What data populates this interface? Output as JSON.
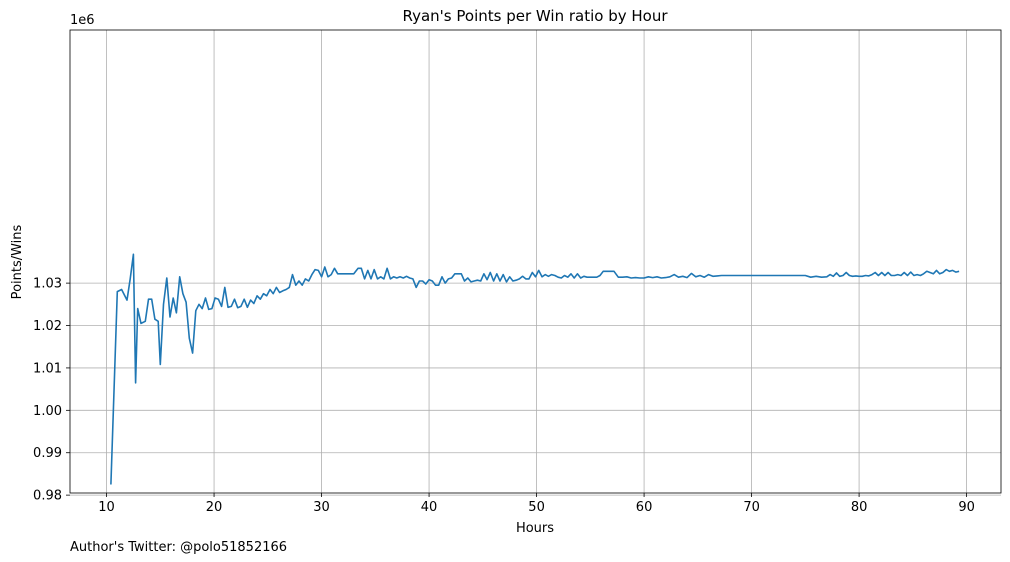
{
  "chart_data": {
    "type": "line",
    "title": "Ryan's Points per Win ratio by Hour",
    "xlabel": "Hours",
    "ylabel": "Points/Wins",
    "y_offset_label": "1e6",
    "footer": "Author's Twitter: @polo51852166",
    "xlim": [
      6.6,
      93.2
    ],
    "ylim": [
      0.9805,
      1.0897
    ],
    "x_ticks": [
      10,
      20,
      30,
      40,
      50,
      60,
      70,
      80,
      90
    ],
    "x_tick_labels": [
      "10",
      "20",
      "30",
      "40",
      "50",
      "60",
      "70",
      "80",
      "90"
    ],
    "y_ticks": [
      0.98,
      0.99,
      1.0,
      1.01,
      1.02,
      1.03
    ],
    "y_tick_labels": [
      "0.98",
      "0.99",
      "1.00",
      "1.01",
      "1.02",
      "1.03"
    ],
    "grid": true,
    "line_color": "#1f77b4",
    "series": [
      {
        "x": [
          10.4,
          11.0,
          11.4,
          11.9,
          12.2,
          12.5,
          12.7,
          12.9,
          13.2,
          13.6,
          13.9,
          14.2,
          14.5,
          14.8,
          15.0,
          15.3,
          15.6,
          15.9,
          16.2,
          16.5,
          16.8,
          17.1,
          17.4,
          17.7,
          18.0,
          18.3,
          18.6,
          18.9,
          19.2,
          19.5,
          19.8,
          20.1,
          20.4,
          20.7,
          21.0,
          21.3,
          21.6,
          21.9,
          22.2,
          22.5,
          22.8,
          23.1,
          23.4,
          23.7,
          24.0,
          24.3,
          24.6,
          24.9,
          25.2,
          25.5,
          25.8,
          26.1,
          26.4,
          26.7,
          27.0,
          27.3,
          27.6,
          27.9,
          28.2,
          28.5,
          28.8,
          29.1,
          29.4,
          29.7,
          30.0,
          30.3,
          30.6,
          30.9,
          31.2,
          31.5,
          31.8,
          32.1,
          32.5,
          33.0,
          33.4,
          33.7,
          34.0,
          34.3,
          34.6,
          34.9,
          35.2,
          35.5,
          35.8,
          36.1,
          36.4,
          36.7,
          37.0,
          37.3,
          37.6,
          37.9,
          38.2,
          38.5,
          38.8,
          39.1,
          39.4,
          39.7,
          40.0,
          40.3,
          40.6,
          40.9,
          41.2,
          41.5,
          41.8,
          42.1,
          42.4,
          42.7,
          43.0,
          43.3,
          43.6,
          43.9,
          44.2,
          44.5,
          44.8,
          45.1,
          45.4,
          45.7,
          46.0,
          46.3,
          46.6,
          46.9,
          47.2,
          47.5,
          47.8,
          48.1,
          48.4,
          48.7,
          49.0,
          49.3,
          49.6,
          49.9,
          50.2,
          50.5,
          50.8,
          51.1,
          51.4,
          51.7,
          52.0,
          52.3,
          52.6,
          52.9,
          53.2,
          53.5,
          53.8,
          54.1,
          54.4,
          54.7,
          55.0,
          55.3,
          55.6,
          55.9,
          56.2,
          56.5,
          56.8,
          57.2,
          57.6,
          58.0,
          58.4,
          58.8,
          59.2,
          59.6,
          60.0,
          60.4,
          60.8,
          61.2,
          61.6,
          62.0,
          62.4,
          62.8,
          63.2,
          63.6,
          64.0,
          64.4,
          64.8,
          65.2,
          65.6,
          66.0,
          66.4,
          66.8,
          67.2,
          75.0,
          75.5,
          76.0,
          76.5,
          77.0,
          77.3,
          77.6,
          77.9,
          78.2,
          78.5,
          78.8,
          79.1,
          79.4,
          79.7,
          80.0,
          80.3,
          80.6,
          80.9,
          81.2,
          81.5,
          81.8,
          82.1,
          82.4,
          82.7,
          83.0,
          83.3,
          83.6,
          83.9,
          84.2,
          84.5,
          84.8,
          85.1,
          85.4,
          85.7,
          86.0,
          86.3,
          86.6,
          86.9,
          87.2,
          87.5,
          87.8,
          88.1,
          88.4,
          88.7,
          89.0,
          89.3
        ],
        "y": [
          0.9825,
          1.028,
          1.0285,
          1.026,
          1.031,
          1.0368,
          1.0065,
          1.024,
          1.0205,
          1.021,
          1.0262,
          1.0262,
          1.0215,
          1.021,
          1.0108,
          1.025,
          1.0312,
          1.022,
          1.0265,
          1.023,
          1.0315,
          1.0275,
          1.0255,
          1.017,
          1.0135,
          1.0235,
          1.025,
          1.024,
          1.0265,
          1.0238,
          1.024,
          1.0265,
          1.0262,
          1.0245,
          1.029,
          1.0243,
          1.0245,
          1.0262,
          1.0242,
          1.0245,
          1.0262,
          1.0243,
          1.026,
          1.0252,
          1.027,
          1.0262,
          1.0275,
          1.027,
          1.0285,
          1.0275,
          1.029,
          1.0278,
          1.0282,
          1.0285,
          1.029,
          1.032,
          1.0295,
          1.0305,
          1.0295,
          1.031,
          1.0305,
          1.032,
          1.0332,
          1.033,
          1.0315,
          1.0338,
          1.0315,
          1.032,
          1.0335,
          1.0322,
          1.0322,
          1.0322,
          1.0322,
          1.0322,
          1.0335,
          1.0335,
          1.031,
          1.033,
          1.031,
          1.0332,
          1.031,
          1.0315,
          1.031,
          1.0335,
          1.031,
          1.0315,
          1.0312,
          1.0315,
          1.0312,
          1.0316,
          1.0312,
          1.031,
          1.029,
          1.0305,
          1.0305,
          1.0298,
          1.0308,
          1.0305,
          1.0295,
          1.0295,
          1.0315,
          1.03,
          1.031,
          1.0312,
          1.0322,
          1.0322,
          1.0322,
          1.0305,
          1.0312,
          1.0303,
          1.0305,
          1.0307,
          1.0305,
          1.0322,
          1.0308,
          1.0325,
          1.0305,
          1.0322,
          1.0305,
          1.032,
          1.0303,
          1.0315,
          1.0305,
          1.0307,
          1.031,
          1.0316,
          1.031,
          1.031,
          1.0325,
          1.0315,
          1.033,
          1.0315,
          1.032,
          1.0316,
          1.032,
          1.0318,
          1.0314,
          1.0312,
          1.0318,
          1.0314,
          1.0322,
          1.0312,
          1.0322,
          1.0312,
          1.0316,
          1.0314,
          1.0314,
          1.0314,
          1.0314,
          1.0318,
          1.0328,
          1.0328,
          1.0328,
          1.0328,
          1.0314,
          1.0314,
          1.0315,
          1.0312,
          1.0313,
          1.0312,
          1.0312,
          1.0315,
          1.0313,
          1.0315,
          1.0312,
          1.0313,
          1.0315,
          1.032,
          1.0314,
          1.0316,
          1.0313,
          1.0323,
          1.0315,
          1.0318,
          1.0314,
          1.032,
          1.0316,
          1.0317,
          1.0318,
          1.0318,
          1.0314,
          1.0316,
          1.0314,
          1.0315,
          1.032,
          1.0316,
          1.0324,
          1.0316,
          1.0318,
          1.0325,
          1.0318,
          1.0316,
          1.0317,
          1.0316,
          1.0316,
          1.0318,
          1.0317,
          1.032,
          1.0325,
          1.0318,
          1.0325,
          1.0318,
          1.0325,
          1.0318,
          1.0318,
          1.032,
          1.0318,
          1.0325,
          1.0318,
          1.0326,
          1.0318,
          1.032,
          1.0318,
          1.0322,
          1.0328,
          1.0325,
          1.0322,
          1.033,
          1.0322,
          1.0325,
          1.0332,
          1.0328,
          1.033,
          1.0326,
          1.0328
        ]
      }
    ]
  }
}
